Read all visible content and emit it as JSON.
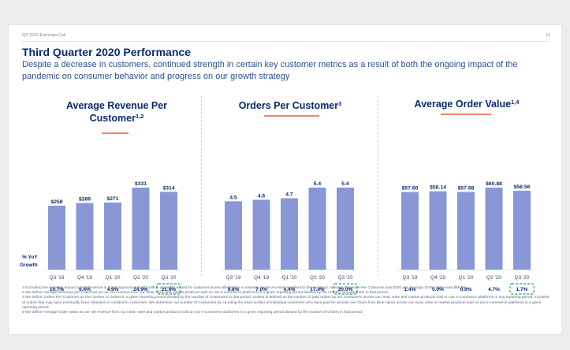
{
  "header": {
    "label": "Q3 2020 Earnings Call",
    "page_number": "11"
  },
  "title": "Third Quarter 2020 Performance",
  "subtitle": "Despite a decrease in customers, continued strength in certain key customer metrics as a result of both the ongoing impact of the pandemic on consumer behavior and progress on our growth strategy",
  "yoy_label": "% YoY",
  "growth_label": "Growth",
  "colors": {
    "bar": "#8a97d6",
    "title": "#0b2a6f",
    "accent": "#f0846a",
    "highlight": "#2aa876"
  },
  "chart_data": [
    {
      "type": "bar",
      "title": "Average Revenue Per Customer",
      "title_sup": "1,2",
      "categories": [
        "Q3 '19",
        "Q4 '19",
        "Q1 '20",
        "Q2 '20",
        "Q3 '20"
      ],
      "values": [
        258,
        269,
        271,
        331,
        314
      ],
      "value_labels": [
        "$258",
        "$269",
        "$271",
        "$331",
        "$314"
      ],
      "growth": [
        "10.7%",
        "6.4%",
        "4.9%",
        "24.9%",
        "21.9%"
      ],
      "highlight_index": 4,
      "ylim": [
        0,
        331
      ]
    },
    {
      "type": "bar",
      "title": "Orders Per Customer",
      "title_sup": "3",
      "categories": [
        "Q3 '19",
        "Q4 '19",
        "Q1 '20",
        "Q2 '20",
        "Q3 '20"
      ],
      "values": [
        4.5,
        4.6,
        4.7,
        5.4,
        5.4
      ],
      "value_labels": [
        "4.5",
        "4.6",
        "4.7",
        "5.4",
        "5.4"
      ],
      "growth": [
        "9.8%",
        "7.0%",
        "4.4%",
        "17.4%",
        "20.0%"
      ],
      "highlight_index": 4,
      "ylim": [
        0,
        5.4
      ]
    },
    {
      "type": "bar",
      "title": "Average Order Value",
      "title_sup": "1,4",
      "categories": [
        "Q3 '19",
        "Q4 '19",
        "Q1 '20",
        "Q2 '20",
        "Q3 '20"
      ],
      "values": [
        57.6,
        58.14,
        57.68,
        60.88,
        58.56
      ],
      "value_labels": [
        "$57.60",
        "$58.14",
        "$57.68",
        "$60.88",
        "$58.56"
      ],
      "growth": [
        "1.4%",
        "0.0%",
        "0.9%",
        "4.7%",
        "1.7%"
      ],
      "highlight_index": 4,
      "ylim": [
        0,
        60.88
      ]
    }
  ],
  "footnotes": [
    "1  Excluding the negative impact to Net Revenue in Q3 of approximately $2 million of credits issued for customer boxes affected by a voluntary recall of onions supplied to the company, Average Revenue Per Customer was $320 and Average Order Value was $59.58",
    "2  We define Average Revenue per Customer as our net revenue from our meal, wine and market products sold on our e-commerce platforms in a given reporting period divided by the number of Customers in that period.",
    "3  We define Orders Per Customer as the number of Orders in a given reporting period divided by the number of Customers in that period. Orders is defined as the number of paid orders by our Customers across our meal, wine and market products sold on our e-commerce platforms in any reporting period, inclusive of orders that may have eventually been refunded or credited to customers. We determine our number of Customers by counting the total number of individual customers who have paid for at least one Order from Blue Apron across our meal, wine or market products sold on our e-commerce platforms in a given reporting period.",
    "4  We define Average Order Value as our net revenue from our meal, wine and market products sold on our e-commerce platforms in a given reporting period divided by the number of Orders in that period."
  ]
}
